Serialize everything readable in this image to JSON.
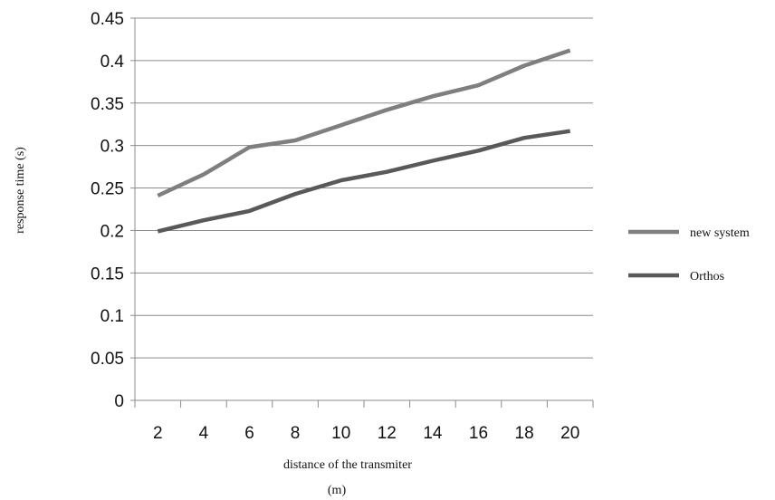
{
  "chart_data": {
    "type": "line",
    "x": [
      2,
      4,
      6,
      8,
      10,
      12,
      14,
      16,
      18,
      20
    ],
    "series": [
      {
        "name": "new system",
        "values": [
          0.241,
          0.266,
          0.298,
          0.306,
          0.324,
          0.342,
          0.358,
          0.371,
          0.394,
          0.412
        ],
        "color": "#7f7f7f"
      },
      {
        "name": "Orthos",
        "values": [
          0.199,
          0.212,
          0.223,
          0.243,
          0.259,
          0.269,
          0.282,
          0.294,
          0.309,
          0.317
        ],
        "color": "#595959"
      }
    ],
    "yticks": [
      "0",
      "0.05",
      "0.1",
      "0.15",
      "0.2",
      "0.25",
      "0.3",
      "0.35",
      "0.4",
      "0.45"
    ],
    "xticks": [
      "2",
      "4",
      "6",
      "8",
      "10",
      "12",
      "14",
      "16",
      "18",
      "20"
    ],
    "ylim": [
      0,
      0.45
    ],
    "xlabel_line1": "distance of the transmiter",
    "xlabel_line2": "(m)",
    "ylabel": "response time (s)",
    "grid": "horizontal",
    "legend_position": "right"
  }
}
